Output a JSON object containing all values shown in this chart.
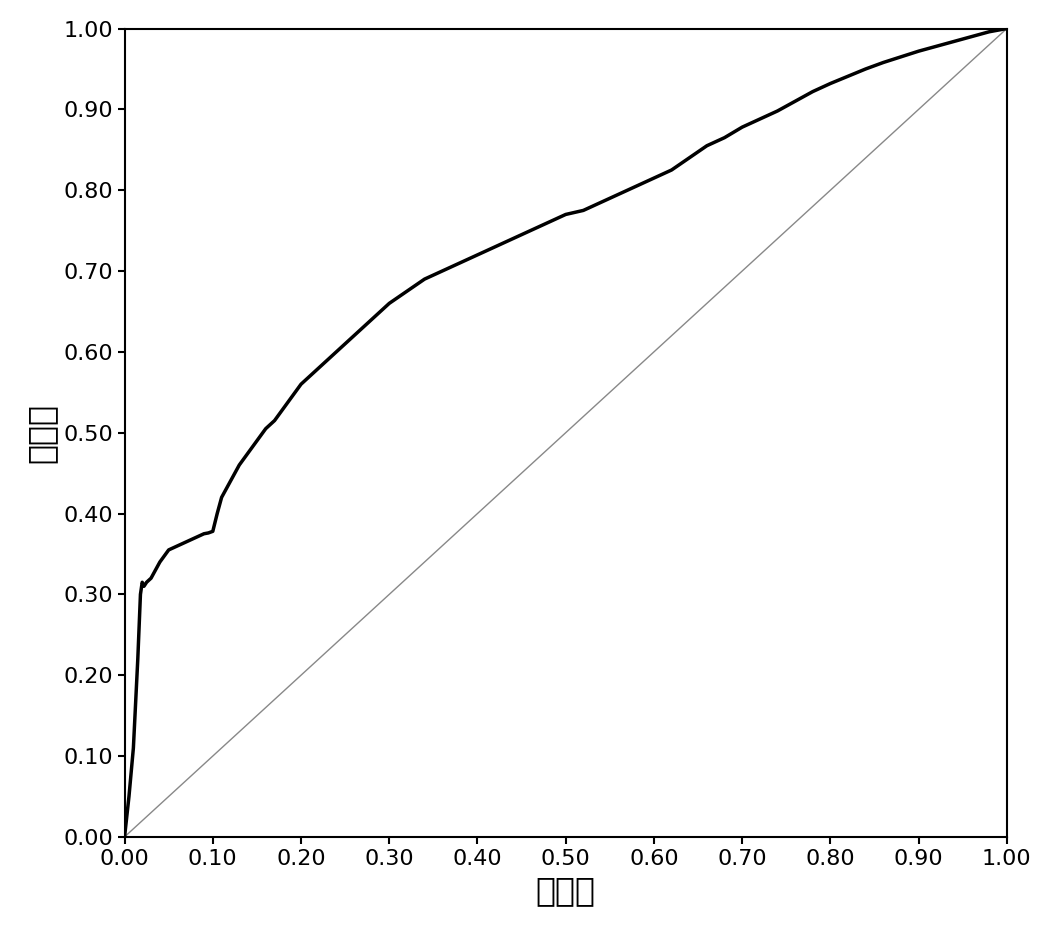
{
  "xlabel": "假阳性",
  "ylabel": "真阳性",
  "xlim": [
    0.0,
    1.0
  ],
  "ylim": [
    0.0,
    1.0
  ],
  "xticks": [
    0.0,
    0.1,
    0.2,
    0.3,
    0.4,
    0.5,
    0.6,
    0.7,
    0.8,
    0.9,
    1.0
  ],
  "yticks": [
    0.0,
    0.1,
    0.2,
    0.3,
    0.4,
    0.5,
    0.6,
    0.7,
    0.8,
    0.9,
    1.0
  ],
  "roc_color": "#000000",
  "roc_linewidth": 2.5,
  "diag_color": "#888888",
  "diag_linewidth": 1.0,
  "background_color": "#ffffff",
  "tick_fontsize": 16,
  "label_fontsize": 24,
  "roc_x": [
    0.0,
    0.005,
    0.01,
    0.015,
    0.018,
    0.02,
    0.022,
    0.025,
    0.03,
    0.04,
    0.05,
    0.06,
    0.07,
    0.08,
    0.09,
    0.095,
    0.1,
    0.105,
    0.11,
    0.12,
    0.13,
    0.14,
    0.15,
    0.16,
    0.17,
    0.18,
    0.19,
    0.2,
    0.22,
    0.24,
    0.26,
    0.28,
    0.3,
    0.32,
    0.34,
    0.36,
    0.38,
    0.4,
    0.42,
    0.44,
    0.46,
    0.48,
    0.5,
    0.52,
    0.54,
    0.56,
    0.58,
    0.6,
    0.62,
    0.64,
    0.66,
    0.68,
    0.7,
    0.72,
    0.74,
    0.76,
    0.78,
    0.8,
    0.82,
    0.84,
    0.86,
    0.88,
    0.9,
    0.92,
    0.94,
    0.96,
    0.98,
    1.0
  ],
  "roc_y": [
    0.0,
    0.05,
    0.11,
    0.22,
    0.3,
    0.315,
    0.31,
    0.315,
    0.32,
    0.34,
    0.355,
    0.36,
    0.365,
    0.37,
    0.375,
    0.376,
    0.378,
    0.4,
    0.42,
    0.44,
    0.46,
    0.475,
    0.49,
    0.505,
    0.515,
    0.53,
    0.545,
    0.56,
    0.58,
    0.6,
    0.62,
    0.64,
    0.66,
    0.675,
    0.69,
    0.7,
    0.71,
    0.72,
    0.73,
    0.74,
    0.75,
    0.76,
    0.77,
    0.775,
    0.785,
    0.795,
    0.805,
    0.815,
    0.825,
    0.84,
    0.855,
    0.865,
    0.878,
    0.888,
    0.898,
    0.91,
    0.922,
    0.932,
    0.941,
    0.95,
    0.958,
    0.965,
    0.972,
    0.978,
    0.984,
    0.99,
    0.996,
    1.0
  ]
}
